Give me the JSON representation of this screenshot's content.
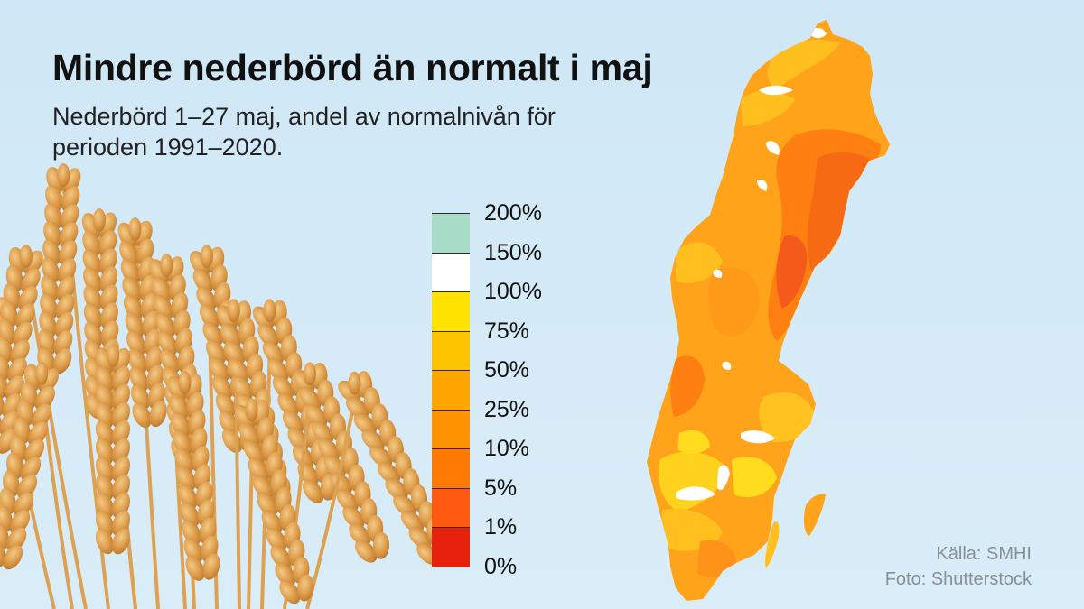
{
  "title": "Mindre nederbörd än normalt i maj",
  "subtitle": "Nederbörd 1–27 maj, andel av normalnivån för perioden 1991–2020.",
  "legend": {
    "ticks": [
      "200%",
      "150%",
      "100%",
      "75%",
      "50%",
      "25%",
      "10%",
      "5%",
      "1%",
      "0%"
    ],
    "colors": [
      "#a8dcc6",
      "#ffffff",
      "#ffe200",
      "#ffc400",
      "#ffa700",
      "#ff9400",
      "#ff7a00",
      "#ff5a0f",
      "#e8210d"
    ]
  },
  "credits": {
    "source": "Källa: SMHI",
    "photo": "Foto: Shutterstock"
  },
  "map": {
    "region": "Sweden",
    "colors": {
      "base": "#ffa41a",
      "light": "#ffbf1f",
      "yellow": "#ffdc1e",
      "dark": "#ff7f10",
      "darkest": "#f45a1a",
      "lake": "#ffffff"
    }
  },
  "illustration": {
    "subject": "wheat-ears"
  }
}
